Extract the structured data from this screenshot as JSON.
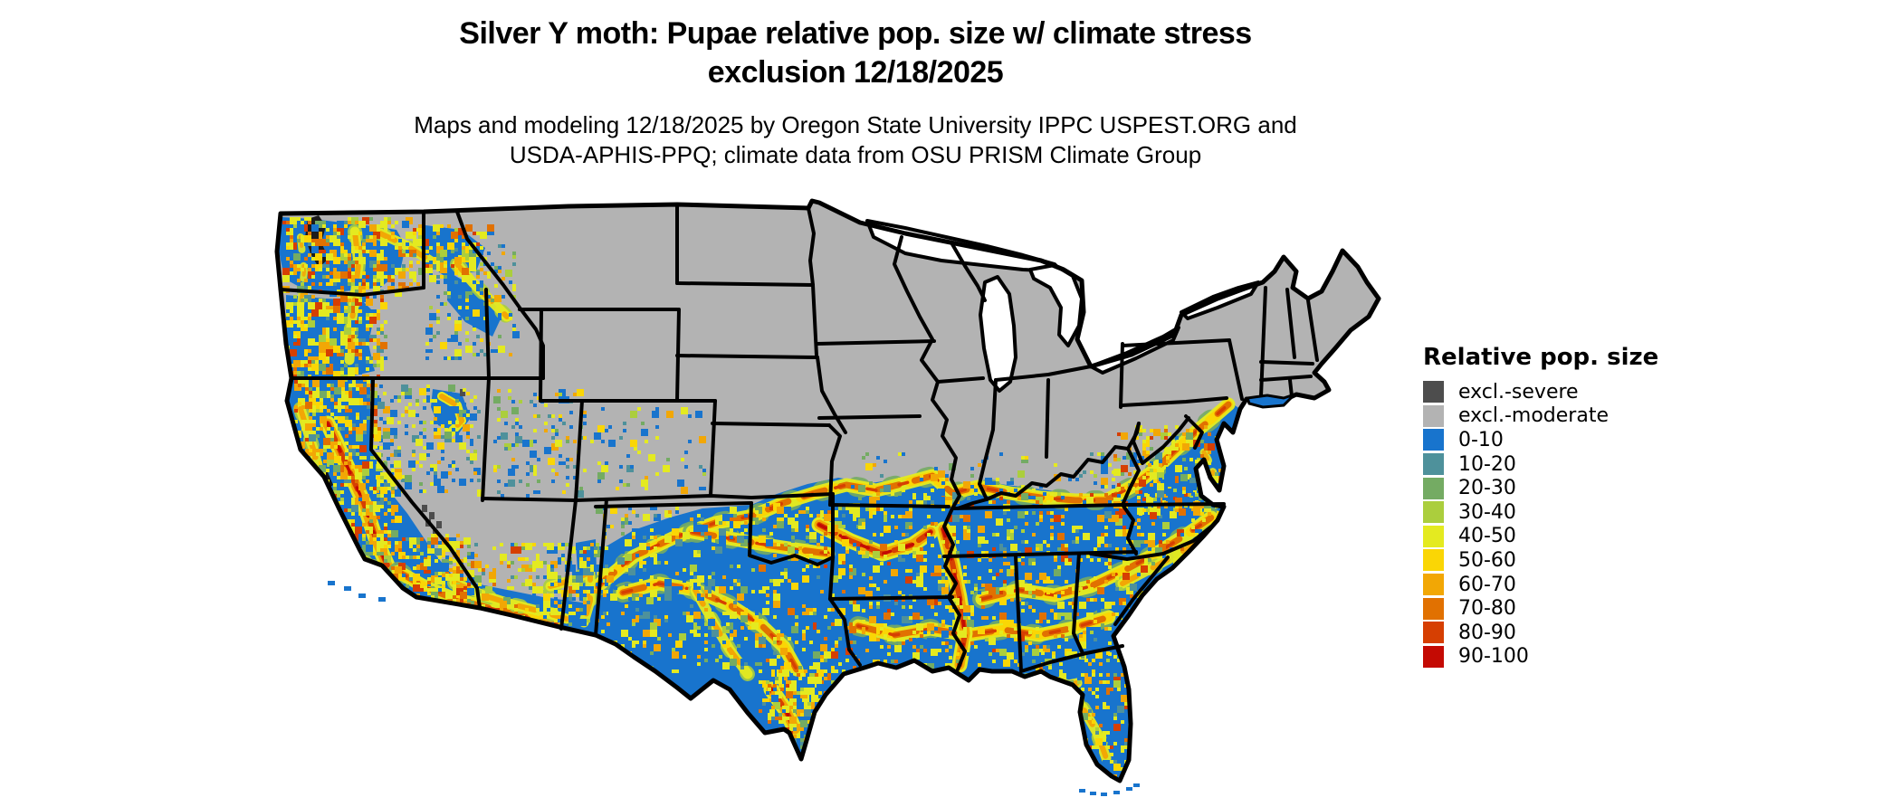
{
  "title": {
    "line1": "Silver Y moth: Pupae relative pop. size w/ climate stress",
    "line2": "exclusion 12/18/2025"
  },
  "subtitle": {
    "line1": "Maps and modeling 12/18/2025 by Oregon State University IPPC USPEST.ORG and",
    "line2": "USDA-APHIS-PPQ; climate data from OSU PRISM Climate Group"
  },
  "map": {
    "description": "Choropleth raster map of the continental United States showing Silver Y moth pupae relative population size with climate stress exclusion",
    "region": "Continental United States",
    "border_color": "#000000",
    "background_color": "#ffffff"
  },
  "legend": {
    "title": "Relative pop. size",
    "items": [
      {
        "label": "excl.-severe",
        "color": "#4d4d4d"
      },
      {
        "label": "excl.-moderate",
        "color": "#b3b3b3"
      },
      {
        "label": "0-10",
        "color": "#1874cd"
      },
      {
        "label": "10-20",
        "color": "#4e919b"
      },
      {
        "label": "20-30",
        "color": "#74ab63"
      },
      {
        "label": "30-40",
        "color": "#abce3d"
      },
      {
        "label": "40-50",
        "color": "#e4ea20"
      },
      {
        "label": "50-60",
        "color": "#fad605"
      },
      {
        "label": "60-70",
        "color": "#f2a705"
      },
      {
        "label": "70-80",
        "color": "#e17101"
      },
      {
        "label": "80-90",
        "color": "#d63f02"
      },
      {
        "label": "90-100",
        "color": "#c40a03"
      }
    ]
  }
}
